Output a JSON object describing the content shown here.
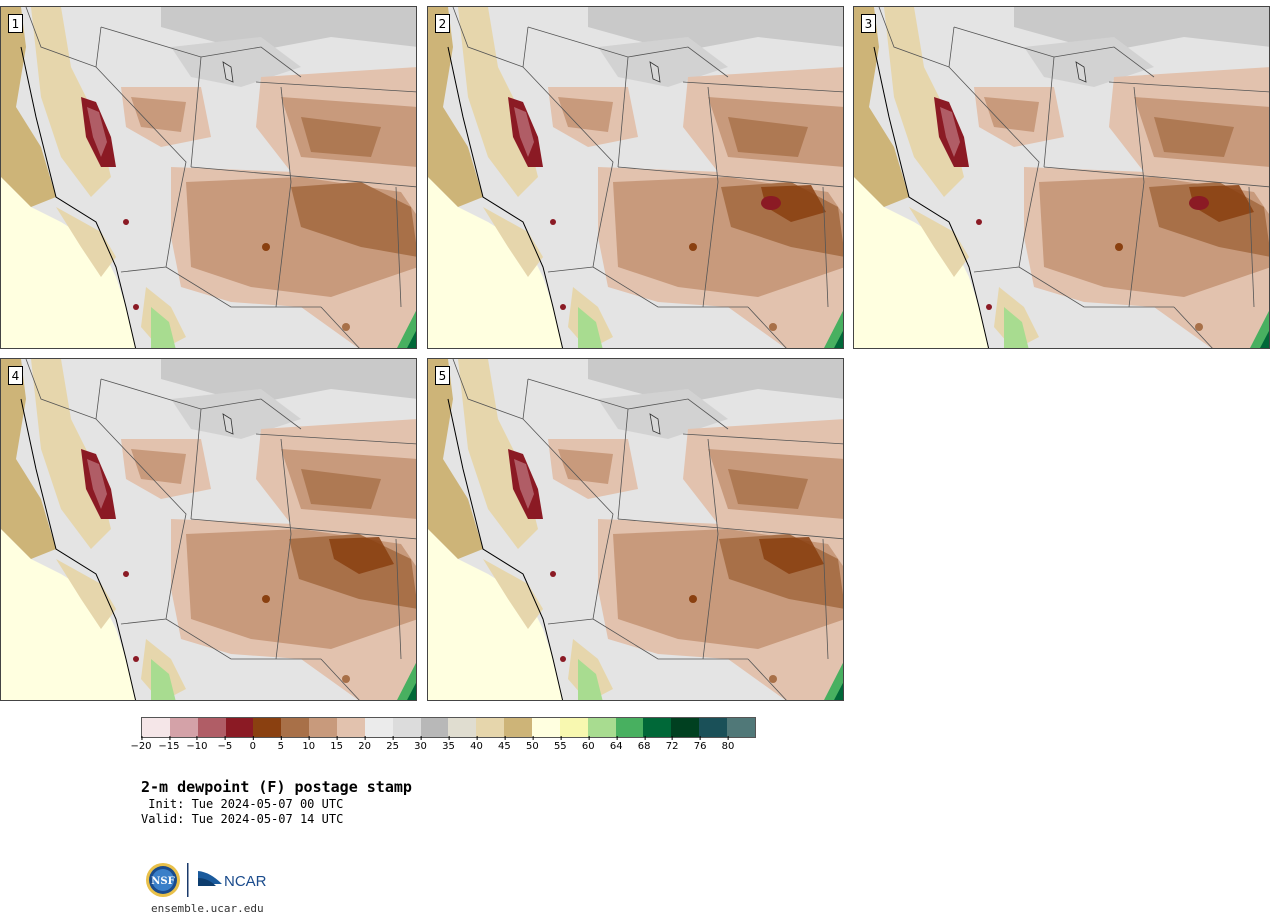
{
  "panels": [
    {
      "label": "1"
    },
    {
      "label": "2"
    },
    {
      "label": "3"
    },
    {
      "label": "4"
    },
    {
      "label": "5"
    }
  ],
  "colorbar": {
    "colors": [
      "#f5e6e8",
      "#d4a2a8",
      "#b05d66",
      "#8b1a24",
      "#8a4010",
      "#a87048",
      "#c89a7c",
      "#e2c2ae",
      "#ebebeb",
      "#dcdcdc",
      "#b8b8b8",
      "#e0ddd0",
      "#e6d6ac",
      "#cdb478",
      "#ffffe0",
      "#f8f8b0",
      "#a8dc90",
      "#48b060",
      "#006838",
      "#004020",
      "#1a5058",
      "#507878"
    ],
    "tick_labels": [
      "−20",
      "−15",
      "−10",
      "−5",
      "0",
      "5",
      "10",
      "15",
      "20",
      "25",
      "30",
      "35",
      "40",
      "45",
      "50",
      "55",
      "60",
      "64",
      "68",
      "72",
      "76",
      "80"
    ]
  },
  "title": "2-m dewpoint (F) postage stamp",
  "init_line": " Init: Tue 2024-05-07 00 UTC",
  "valid_line": "Valid: Tue 2024-05-07 14 UTC",
  "logos": {
    "nsf": "NSF",
    "ncar": "NCAR"
  },
  "url": "ensemble.ucar.edu"
}
